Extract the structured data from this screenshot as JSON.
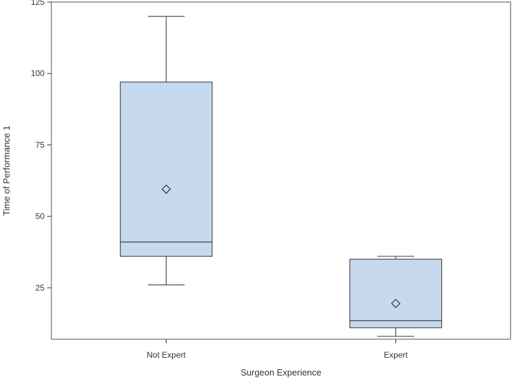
{
  "chart_data": {
    "type": "box",
    "categories": [
      "Not Expert",
      "Expert"
    ],
    "xlabel": "Surgeon Experience",
    "ylabel": "Time of Performance 1",
    "ylim": [
      7,
      125
    ],
    "yticks": [
      25,
      50,
      75,
      100,
      125
    ],
    "grid": false,
    "legend": "none",
    "boxes": [
      {
        "category": "Not Expert",
        "min": 26,
        "q1": 36,
        "median": 41,
        "q3": 97,
        "max": 120,
        "mean": 59.5
      },
      {
        "category": "Expert",
        "min": 8,
        "q1": 11,
        "median": 13.5,
        "q3": 35,
        "max": 36,
        "mean": 19.5
      }
    ],
    "colors": {
      "box_fill": "#c6d9ee",
      "box_stroke": "#4d4d4d",
      "axis": "#333333"
    }
  }
}
